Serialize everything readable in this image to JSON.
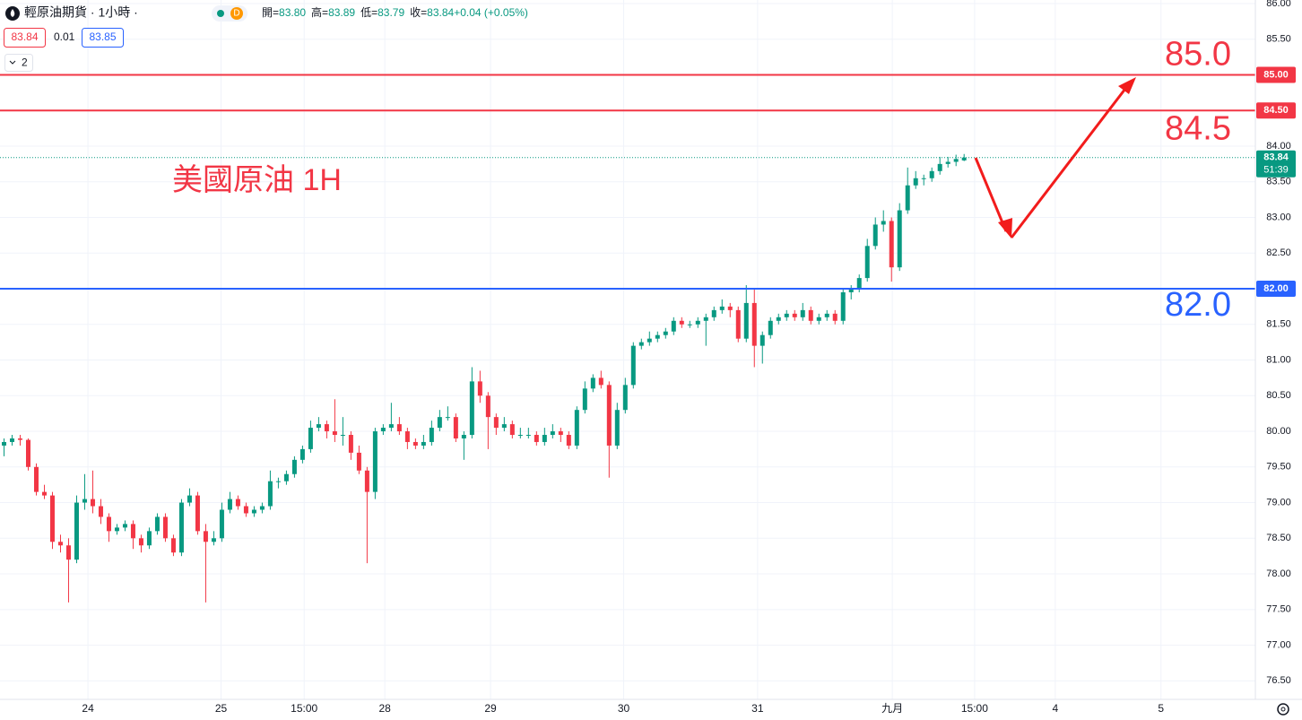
{
  "header": {
    "symbol": "輕原油期貨 · 1小時 ·",
    "badge": "D",
    "legend": [
      {
        "label": "開=",
        "value": "83.80"
      },
      {
        "label": "高=",
        "value": "83.89"
      },
      {
        "label": "低=",
        "value": "83.79"
      },
      {
        "label": "收=",
        "value": "83.84"
      },
      {
        "label": "",
        "value": "+0.04 (+0.05%)"
      }
    ]
  },
  "toolbar": {
    "sell": "83.84",
    "spread": "0.01",
    "buy": "83.85",
    "indicators": "2"
  },
  "chart_data": {
    "type": "candlestick",
    "annotation": "美國原油 1H",
    "up_color": "#089981",
    "down_color": "#f23645",
    "x": [
      0,
      1,
      2,
      3,
      4,
      5,
      6,
      7,
      8,
      9,
      10,
      11,
      12,
      13,
      14,
      15,
      16,
      17,
      18,
      19,
      20,
      21,
      22,
      23,
      24,
      25,
      26,
      27,
      28,
      29,
      30,
      31,
      32,
      33,
      34,
      35,
      36,
      37,
      38,
      39,
      40,
      41,
      42,
      43,
      44,
      45,
      46,
      47,
      48,
      49,
      50,
      51,
      52,
      53,
      54,
      55,
      56,
      57,
      58,
      59,
      60,
      61,
      62,
      63,
      64,
      65,
      66,
      67,
      68,
      69,
      70,
      71,
      72,
      73,
      74,
      75,
      76,
      77,
      78,
      79,
      80,
      81,
      82,
      83,
      84,
      85,
      86,
      87,
      88,
      89,
      90,
      91,
      92,
      93,
      94,
      95,
      96,
      97,
      98,
      99,
      100,
      101,
      102,
      103,
      104,
      105,
      106,
      107,
      108,
      109,
      110,
      111,
      112,
      113,
      114,
      115,
      116,
      117,
      118,
      119
    ],
    "ohlc": [
      [
        79.8,
        79.9,
        79.65,
        79.85
      ],
      [
        79.85,
        79.95,
        79.8,
        79.9
      ],
      [
        79.9,
        79.95,
        79.8,
        79.88
      ],
      [
        79.88,
        79.9,
        79.45,
        79.5
      ],
      [
        79.5,
        79.55,
        79.1,
        79.15
      ],
      [
        79.15,
        79.25,
        79.05,
        79.1
      ],
      [
        79.1,
        79.15,
        78.35,
        78.45
      ],
      [
        78.45,
        78.55,
        78.3,
        78.4
      ],
      [
        78.4,
        78.5,
        77.6,
        78.2
      ],
      [
        78.2,
        79.1,
        78.15,
        79.0
      ],
      [
        79.0,
        79.4,
        78.9,
        79.05
      ],
      [
        79.05,
        79.45,
        78.85,
        78.95
      ],
      [
        78.95,
        79.05,
        78.7,
        78.8
      ],
      [
        78.8,
        78.85,
        78.45,
        78.6
      ],
      [
        78.6,
        78.7,
        78.55,
        78.65
      ],
      [
        78.65,
        78.75,
        78.6,
        78.7
      ],
      [
        78.7,
        78.75,
        78.35,
        78.5
      ],
      [
        78.5,
        78.55,
        78.3,
        78.4
      ],
      [
        78.4,
        78.65,
        78.35,
        78.6
      ],
      [
        78.6,
        78.85,
        78.55,
        78.8
      ],
      [
        78.8,
        78.85,
        78.45,
        78.5
      ],
      [
        78.5,
        78.55,
        78.25,
        78.3
      ],
      [
        78.3,
        79.05,
        78.25,
        79.0
      ],
      [
        79.0,
        79.2,
        78.95,
        79.1
      ],
      [
        79.1,
        79.15,
        78.55,
        78.6
      ],
      [
        78.6,
        78.7,
        77.6,
        78.45
      ],
      [
        78.45,
        78.6,
        78.4,
        78.5
      ],
      [
        78.5,
        79.0,
        78.45,
        78.9
      ],
      [
        78.9,
        79.15,
        78.85,
        79.05
      ],
      [
        79.05,
        79.1,
        78.9,
        78.95
      ],
      [
        78.95,
        79.0,
        78.8,
        78.85
      ],
      [
        78.85,
        78.95,
        78.8,
        78.9
      ],
      [
        78.9,
        79.0,
        78.85,
        78.95
      ],
      [
        78.95,
        79.45,
        78.9,
        79.3
      ],
      [
        79.3,
        79.35,
        79.2,
        79.3
      ],
      [
        79.3,
        79.45,
        79.25,
        79.4
      ],
      [
        79.4,
        79.65,
        79.35,
        79.6
      ],
      [
        79.6,
        79.8,
        79.55,
        79.75
      ],
      [
        79.75,
        80.15,
        79.7,
        80.05
      ],
      [
        80.05,
        80.2,
        80.0,
        80.1
      ],
      [
        80.1,
        80.15,
        79.9,
        80.0
      ],
      [
        80.0,
        80.45,
        79.85,
        79.95
      ],
      [
        79.95,
        80.2,
        79.8,
        79.95
      ],
      [
        79.95,
        80.0,
        79.6,
        79.7
      ],
      [
        79.7,
        79.8,
        79.4,
        79.45
      ],
      [
        79.45,
        79.5,
        78.15,
        79.15
      ],
      [
        79.15,
        80.05,
        79.05,
        80.0
      ],
      [
        80.0,
        80.1,
        79.95,
        80.05
      ],
      [
        80.05,
        80.4,
        80.0,
        80.1
      ],
      [
        80.1,
        80.2,
        79.95,
        80.0
      ],
      [
        80.0,
        80.05,
        79.75,
        79.85
      ],
      [
        79.85,
        79.9,
        79.75,
        79.8
      ],
      [
        79.8,
        79.95,
        79.75,
        79.85
      ],
      [
        79.85,
        80.15,
        79.8,
        80.05
      ],
      [
        80.05,
        80.3,
        80.0,
        80.2
      ],
      [
        80.2,
        80.35,
        80.15,
        80.2
      ],
      [
        80.2,
        80.25,
        79.85,
        79.9
      ],
      [
        79.9,
        80.0,
        79.6,
        79.95
      ],
      [
        79.95,
        80.9,
        79.9,
        80.7
      ],
      [
        80.7,
        80.85,
        80.4,
        80.5
      ],
      [
        80.5,
        80.55,
        79.75,
        80.2
      ],
      [
        80.2,
        80.25,
        79.95,
        80.05
      ],
      [
        80.05,
        80.2,
        80.0,
        80.1
      ],
      [
        80.1,
        80.15,
        79.9,
        79.95
      ],
      [
        79.95,
        80.05,
        79.9,
        79.95
      ],
      [
        79.95,
        80.05,
        79.9,
        79.95
      ],
      [
        79.95,
        80.0,
        79.8,
        79.85
      ],
      [
        79.85,
        80.05,
        79.8,
        79.95
      ],
      [
        79.95,
        80.1,
        79.9,
        80.0
      ],
      [
        80.0,
        80.05,
        79.85,
        79.95
      ],
      [
        79.95,
        80.0,
        79.75,
        79.8
      ],
      [
        79.8,
        80.35,
        79.75,
        80.3
      ],
      [
        80.3,
        80.7,
        80.25,
        80.6
      ],
      [
        80.6,
        80.8,
        80.55,
        80.75
      ],
      [
        80.75,
        80.85,
        80.6,
        80.65
      ],
      [
        80.65,
        80.7,
        79.35,
        79.8
      ],
      [
        79.8,
        80.4,
        79.75,
        80.3
      ],
      [
        80.3,
        80.75,
        80.25,
        80.65
      ],
      [
        80.65,
        81.25,
        80.6,
        81.2
      ],
      [
        81.2,
        81.3,
        81.15,
        81.25
      ],
      [
        81.25,
        81.4,
        81.2,
        81.3
      ],
      [
        81.3,
        81.4,
        81.25,
        81.35
      ],
      [
        81.35,
        81.45,
        81.3,
        81.4
      ],
      [
        81.4,
        81.6,
        81.35,
        81.55
      ],
      [
        81.55,
        81.6,
        81.45,
        81.5
      ],
      [
        81.5,
        81.55,
        81.45,
        81.5
      ],
      [
        81.5,
        81.6,
        81.45,
        81.55
      ],
      [
        81.55,
        81.65,
        81.2,
        81.6
      ],
      [
        81.6,
        81.75,
        81.55,
        81.7
      ],
      [
        81.7,
        81.85,
        81.65,
        81.75
      ],
      [
        81.75,
        81.8,
        81.6,
        81.7
      ],
      [
        81.7,
        81.75,
        81.25,
        81.3
      ],
      [
        81.3,
        82.05,
        81.25,
        81.8
      ],
      [
        81.8,
        82.0,
        80.9,
        81.2
      ],
      [
        81.2,
        81.4,
        80.95,
        81.35
      ],
      [
        81.35,
        81.6,
        81.3,
        81.55
      ],
      [
        81.55,
        81.65,
        81.5,
        81.6
      ],
      [
        81.6,
        81.7,
        81.55,
        81.65
      ],
      [
        81.65,
        81.7,
        81.55,
        81.6
      ],
      [
        81.6,
        81.8,
        81.55,
        81.7
      ],
      [
        81.7,
        81.75,
        81.5,
        81.55
      ],
      [
        81.55,
        81.65,
        81.5,
        81.6
      ],
      [
        81.6,
        81.7,
        81.55,
        81.65
      ],
      [
        81.65,
        81.7,
        81.5,
        81.55
      ],
      [
        81.55,
        82.0,
        81.5,
        81.95
      ],
      [
        81.95,
        82.05,
        81.85,
        82.0
      ],
      [
        82.0,
        82.2,
        81.95,
        82.15
      ],
      [
        82.15,
        82.7,
        82.1,
        82.6
      ],
      [
        82.6,
        83.0,
        82.55,
        82.9
      ],
      [
        82.9,
        83.1,
        82.8,
        82.95
      ],
      [
        82.95,
        83.0,
        82.1,
        82.3
      ],
      [
        82.3,
        83.2,
        82.25,
        83.1
      ],
      [
        83.1,
        83.7,
        83.05,
        83.45
      ],
      [
        83.45,
        83.65,
        83.4,
        83.55
      ],
      [
        83.55,
        83.6,
        83.45,
        83.55
      ],
      [
        83.55,
        83.7,
        83.5,
        83.65
      ],
      [
        83.65,
        83.85,
        83.6,
        83.75
      ],
      [
        83.75,
        83.85,
        83.7,
        83.78
      ],
      [
        83.78,
        83.88,
        83.72,
        83.82
      ],
      [
        83.8,
        83.89,
        83.79,
        83.84
      ]
    ],
    "xlim": [
      -0.5,
      155.1
    ],
    "xticks": [
      {
        "value": 10.4,
        "label": "24"
      },
      {
        "value": 26.9,
        "label": "25"
      },
      {
        "value": 37.2,
        "label": "15:00"
      },
      {
        "value": 47.2,
        "label": "28"
      },
      {
        "value": 60.3,
        "label": "29"
      },
      {
        "value": 76.8,
        "label": "30"
      },
      {
        "value": 93.4,
        "label": "31"
      },
      {
        "value": 110.1,
        "label": "九月"
      },
      {
        "value": 120.3,
        "label": "15:00"
      },
      {
        "value": 130.3,
        "label": "4"
      },
      {
        "value": 143.4,
        "label": "5"
      }
    ],
    "ylim": [
      76.24,
      86.05
    ],
    "yticks": [
      {
        "value": 76.5,
        "label": "76.50"
      },
      {
        "value": 77,
        "label": "77.00"
      },
      {
        "value": 77.5,
        "label": "77.50"
      },
      {
        "value": 78,
        "label": "78.00"
      },
      {
        "value": 78.5,
        "label": "78.50"
      },
      {
        "value": 79,
        "label": "79.00"
      },
      {
        "value": 79.5,
        "label": "79.50"
      },
      {
        "value": 80,
        "label": "80.00"
      },
      {
        "value": 80.5,
        "label": "80.50"
      },
      {
        "value": 81,
        "label": "81.00"
      },
      {
        "value": 81.5,
        "label": "81.50"
      },
      {
        "value": 82,
        "label": "82.00"
      },
      {
        "value": 82.5,
        "label": "82.50"
      },
      {
        "value": 83,
        "label": "83.00"
      },
      {
        "value": 83.5,
        "label": "83.50"
      },
      {
        "value": 84,
        "label": "84.00"
      },
      {
        "value": 84.5,
        "label": "84.50"
      },
      {
        "value": 85,
        "label": "85.00"
      },
      {
        "value": 85.5,
        "label": "85.50"
      },
      {
        "value": 86,
        "label": "86.00"
      }
    ],
    "grid": true,
    "hlines": [
      {
        "value": 85,
        "label": "85.0",
        "axis_label": "85.00",
        "color": "#f23645"
      },
      {
        "value": 84.5,
        "label": "84.5",
        "axis_label": "84.50",
        "color": "#f23645"
      },
      {
        "value": 82,
        "label": "82.0",
        "axis_label": "82.00",
        "color": "#2962ff"
      }
    ],
    "last_price": {
      "value": 83.84,
      "countdown": "51:39",
      "color": "#089981"
    }
  }
}
